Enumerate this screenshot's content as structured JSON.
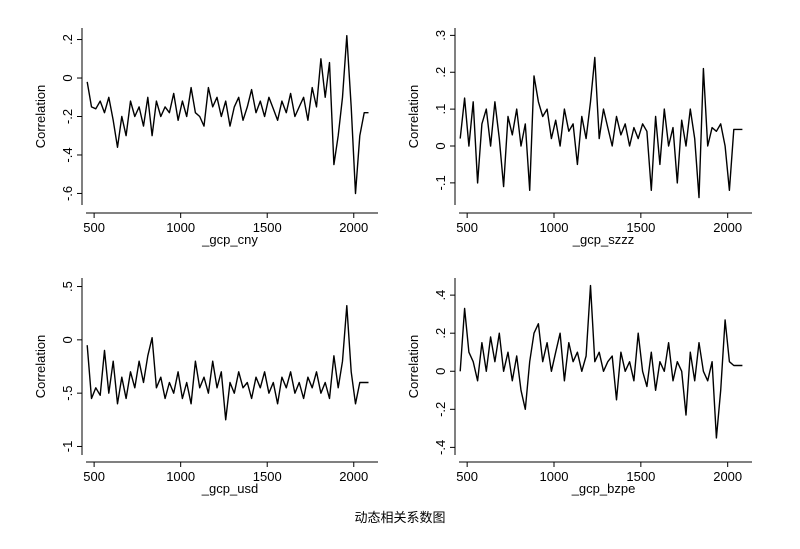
{
  "chart_data": [
    {
      "type": "line",
      "ylabel": "Correlation",
      "xlabel": "_gcp_cny",
      "color": "#000000",
      "xlim": [
        430,
        2140
      ],
      "xticks": [
        500,
        1000,
        1500,
        2000
      ],
      "ylim": [
        -0.66,
        0.26
      ],
      "yticks": [
        {
          "value": 0.2,
          "label": ".2"
        },
        0,
        {
          "value": -0.2,
          "label": "-.2"
        },
        {
          "value": -0.4,
          "label": "-.4"
        },
        {
          "value": -0.6,
          "label": "-.6"
        }
      ],
      "x": [
        460,
        485,
        510,
        535,
        560,
        585,
        610,
        635,
        660,
        685,
        710,
        735,
        760,
        785,
        810,
        835,
        860,
        885,
        910,
        935,
        960,
        985,
        1010,
        1035,
        1060,
        1085,
        1110,
        1135,
        1160,
        1185,
        1210,
        1235,
        1260,
        1285,
        1310,
        1335,
        1360,
        1385,
        1410,
        1435,
        1460,
        1485,
        1510,
        1535,
        1560,
        1585,
        1610,
        1635,
        1660,
        1685,
        1710,
        1735,
        1760,
        1785,
        1810,
        1835,
        1860,
        1885,
        1910,
        1935,
        1960,
        1985,
        2010,
        2035,
        2060,
        2085
      ],
      "values": [
        -0.02,
        -0.15,
        -0.16,
        -0.12,
        -0.18,
        -0.1,
        -0.22,
        -0.36,
        -0.2,
        -0.3,
        -0.12,
        -0.2,
        -0.15,
        -0.25,
        -0.1,
        -0.3,
        -0.12,
        -0.2,
        -0.15,
        -0.18,
        -0.08,
        -0.22,
        -0.12,
        -0.2,
        -0.05,
        -0.18,
        -0.2,
        -0.25,
        -0.05,
        -0.15,
        -0.1,
        -0.2,
        -0.12,
        -0.25,
        -0.15,
        -0.1,
        -0.22,
        -0.15,
        -0.06,
        -0.18,
        -0.12,
        -0.2,
        -0.1,
        -0.16,
        -0.22,
        -0.12,
        -0.18,
        -0.08,
        -0.2,
        -0.15,
        -0.1,
        -0.22,
        -0.05,
        -0.15,
        0.1,
        -0.1,
        0.08,
        -0.45,
        -0.3,
        -0.1,
        0.22,
        -0.15,
        -0.6,
        -0.3,
        -0.18,
        -0.18
      ]
    },
    {
      "type": "line",
      "ylabel": "Correlation",
      "xlabel": "_gcp_szzz",
      "color": "#000000",
      "xlim": [
        430,
        2140
      ],
      "xticks": [
        500,
        1000,
        1500,
        2000
      ],
      "ylim": [
        -0.16,
        0.32
      ],
      "yticks": [
        {
          "value": 0.3,
          "label": ".3"
        },
        {
          "value": 0.2,
          "label": ".2"
        },
        {
          "value": 0.1,
          "label": ".1"
        },
        0,
        {
          "value": -0.1,
          "label": "-.1"
        }
      ],
      "x": [
        460,
        485,
        510,
        535,
        560,
        585,
        610,
        635,
        660,
        685,
        710,
        735,
        760,
        785,
        810,
        835,
        860,
        885,
        910,
        935,
        960,
        985,
        1010,
        1035,
        1060,
        1085,
        1110,
        1135,
        1160,
        1185,
        1210,
        1235,
        1260,
        1285,
        1310,
        1335,
        1360,
        1385,
        1410,
        1435,
        1460,
        1485,
        1510,
        1535,
        1560,
        1585,
        1610,
        1635,
        1660,
        1685,
        1710,
        1735,
        1760,
        1785,
        1810,
        1835,
        1860,
        1885,
        1910,
        1935,
        1960,
        1985,
        2010,
        2035,
        2060,
        2085
      ],
      "values": [
        0.02,
        0.13,
        0.0,
        0.12,
        -0.1,
        0.06,
        0.1,
        0.0,
        0.12,
        0.02,
        -0.11,
        0.08,
        0.03,
        0.1,
        0.0,
        0.06,
        -0.12,
        0.19,
        0.12,
        0.08,
        0.1,
        0.02,
        0.07,
        0.0,
        0.1,
        0.04,
        0.06,
        -0.05,
        0.08,
        0.02,
        0.12,
        0.24,
        0.02,
        0.1,
        0.05,
        0.0,
        0.08,
        0.03,
        0.06,
        0.0,
        0.05,
        0.02,
        0.06,
        0.04,
        -0.12,
        0.08,
        -0.05,
        0.1,
        0.0,
        0.05,
        -0.1,
        0.07,
        0.0,
        0.1,
        0.02,
        -0.14,
        0.21,
        0.0,
        0.05,
        0.04,
        0.06,
        0.0,
        -0.12,
        0.045,
        0.045,
        0.045
      ]
    },
    {
      "type": "line",
      "ylabel": "Correlation",
      "xlabel": "_gcp_usd",
      "color": "#000000",
      "xlim": [
        430,
        2140
      ],
      "xticks": [
        500,
        1000,
        1500,
        2000
      ],
      "ylim": [
        -1.08,
        0.58
      ],
      "yticks": [
        {
          "value": 0.5,
          "label": ".5"
        },
        0,
        {
          "value": -0.5,
          "label": "-.5"
        },
        -1
      ],
      "x": [
        460,
        485,
        510,
        535,
        560,
        585,
        610,
        635,
        660,
        685,
        710,
        735,
        760,
        785,
        810,
        835,
        860,
        885,
        910,
        935,
        960,
        985,
        1010,
        1035,
        1060,
        1085,
        1110,
        1135,
        1160,
        1185,
        1210,
        1235,
        1260,
        1285,
        1310,
        1335,
        1360,
        1385,
        1410,
        1435,
        1460,
        1485,
        1510,
        1535,
        1560,
        1585,
        1610,
        1635,
        1660,
        1685,
        1710,
        1735,
        1760,
        1785,
        1810,
        1835,
        1860,
        1885,
        1910,
        1935,
        1960,
        1985,
        2010,
        2035,
        2060,
        2085
      ],
      "values": [
        -0.05,
        -0.55,
        -0.45,
        -0.52,
        -0.1,
        -0.5,
        -0.2,
        -0.6,
        -0.35,
        -0.55,
        -0.3,
        -0.45,
        -0.2,
        -0.4,
        -0.15,
        0.02,
        -0.45,
        -0.35,
        -0.55,
        -0.4,
        -0.5,
        -0.3,
        -0.55,
        -0.4,
        -0.6,
        -0.2,
        -0.45,
        -0.35,
        -0.5,
        -0.2,
        -0.45,
        -0.3,
        -0.75,
        -0.4,
        -0.5,
        -0.3,
        -0.45,
        -0.4,
        -0.55,
        -0.35,
        -0.45,
        -0.3,
        -0.5,
        -0.4,
        -0.6,
        -0.35,
        -0.45,
        -0.3,
        -0.5,
        -0.4,
        -0.55,
        -0.35,
        -0.45,
        -0.3,
        -0.5,
        -0.4,
        -0.55,
        -0.15,
        -0.45,
        -0.2,
        0.32,
        -0.3,
        -0.6,
        -0.4,
        -0.4,
        -0.4
      ]
    },
    {
      "type": "line",
      "ylabel": "Correlation",
      "xlabel": "_gcp_bzpe",
      "color": "#000000",
      "xlim": [
        430,
        2140
      ],
      "xticks": [
        500,
        1000,
        1500,
        2000
      ],
      "ylim": [
        -0.44,
        0.49
      ],
      "yticks": [
        {
          "value": 0.4,
          "label": ".4"
        },
        {
          "value": 0.2,
          "label": ".2"
        },
        0,
        {
          "value": -0.2,
          "label": "-.2"
        },
        {
          "value": -0.4,
          "label": "-.4"
        }
      ],
      "x": [
        460,
        485,
        510,
        535,
        560,
        585,
        610,
        635,
        660,
        685,
        710,
        735,
        760,
        785,
        810,
        835,
        860,
        885,
        910,
        935,
        960,
        985,
        1010,
        1035,
        1060,
        1085,
        1110,
        1135,
        1160,
        1185,
        1210,
        1235,
        1260,
        1285,
        1310,
        1335,
        1360,
        1385,
        1410,
        1435,
        1460,
        1485,
        1510,
        1535,
        1560,
        1585,
        1610,
        1635,
        1660,
        1685,
        1710,
        1735,
        1760,
        1785,
        1810,
        1835,
        1860,
        1885,
        1910,
        1935,
        1960,
        1985,
        2010,
        2035,
        2060,
        2085
      ],
      "values": [
        0.0,
        0.33,
        0.1,
        0.05,
        -0.05,
        0.15,
        0.0,
        0.18,
        0.05,
        0.2,
        0.0,
        0.1,
        -0.05,
        0.08,
        -0.1,
        -0.2,
        0.05,
        0.2,
        0.25,
        0.05,
        0.15,
        0.0,
        0.1,
        0.2,
        -0.05,
        0.15,
        0.05,
        0.1,
        0.0,
        0.08,
        0.45,
        0.05,
        0.1,
        0.0,
        0.05,
        0.08,
        -0.15,
        0.1,
        0.0,
        0.05,
        -0.05,
        0.2,
        0.0,
        -0.08,
        0.1,
        -0.1,
        0.05,
        0.0,
        0.15,
        -0.05,
        0.05,
        0.0,
        -0.23,
        0.1,
        -0.05,
        0.15,
        0.0,
        -0.05,
        0.05,
        -0.35,
        -0.1,
        0.27,
        0.05,
        0.03,
        0.03,
        0.03
      ]
    }
  ],
  "caption": "动态相关系数图"
}
